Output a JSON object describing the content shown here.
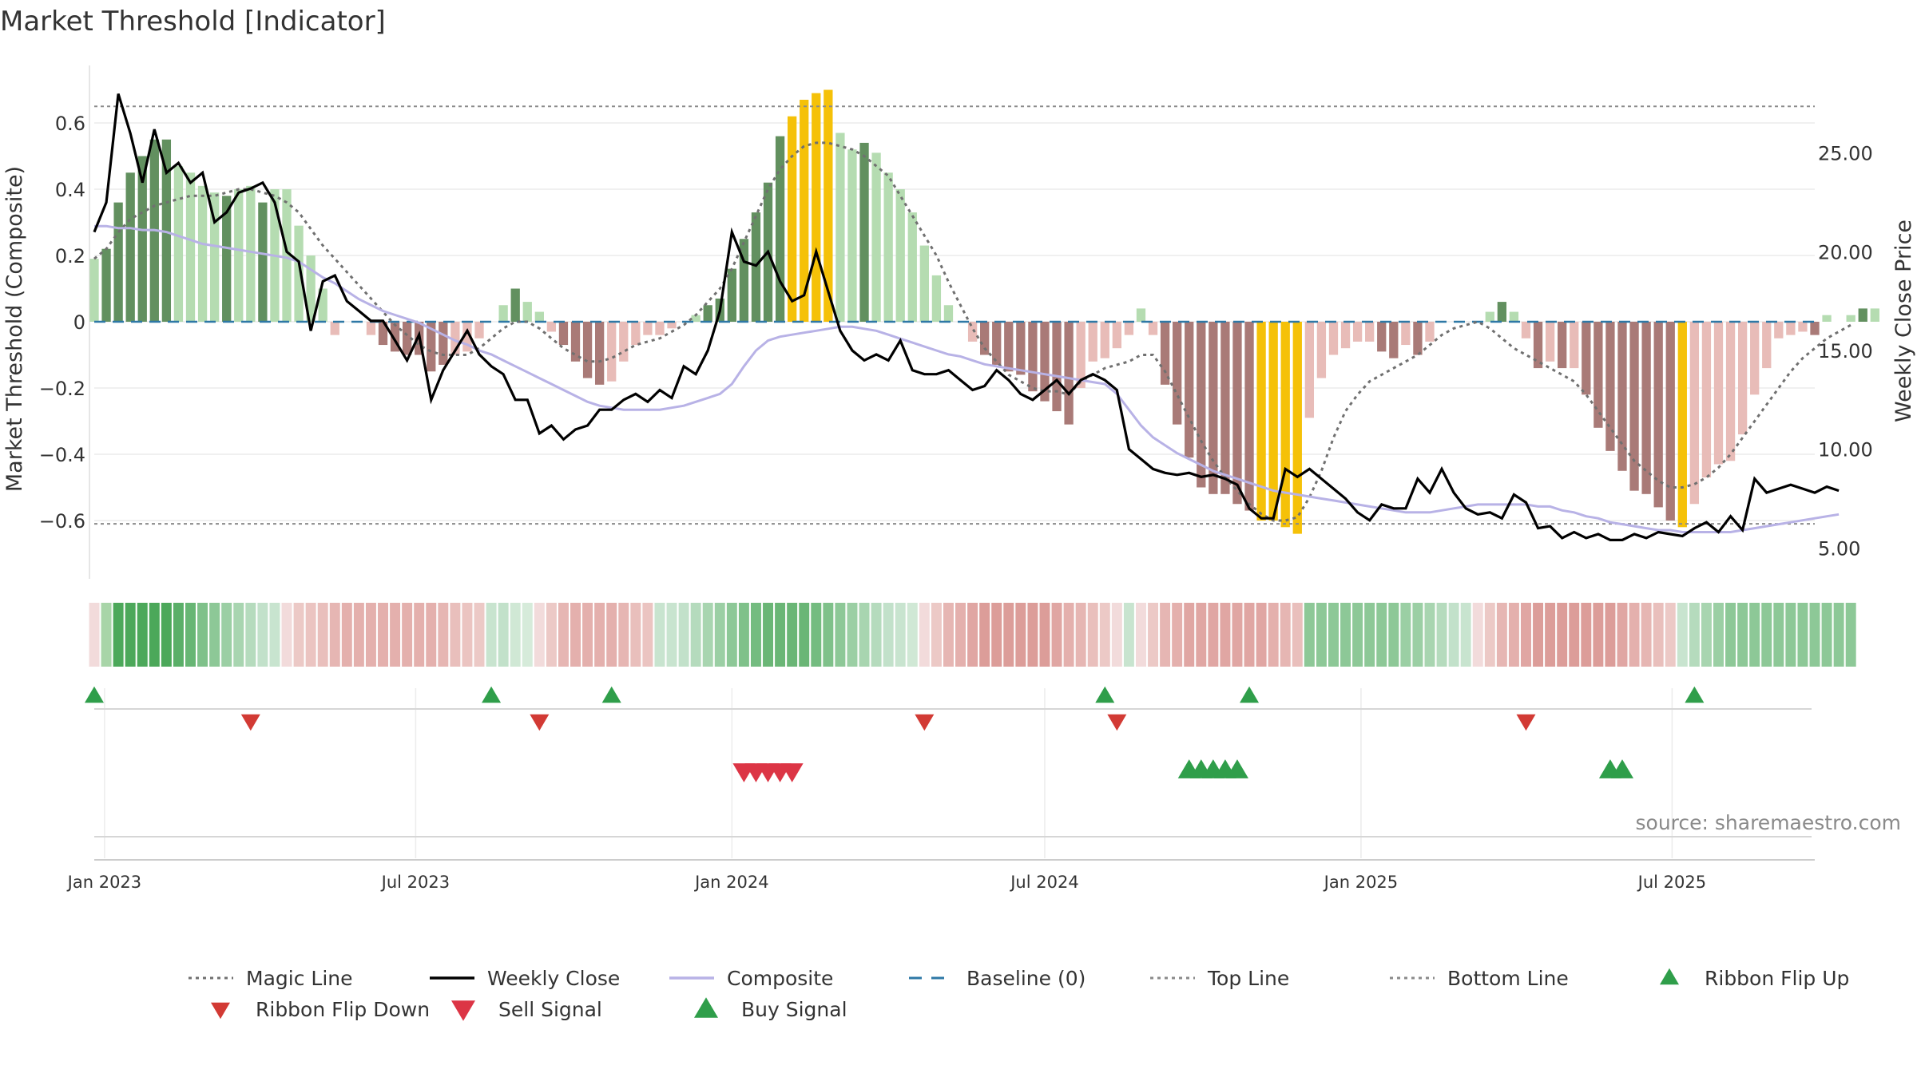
{
  "chart_data": {
    "type": "bar",
    "title": "Market Threshold [Indicator]",
    "ylabel_left": "Market Threshold (Composite)",
    "ylabel_right": "Weekly Close Price",
    "source": "source: sharemaestro.com",
    "y_left_range": [
      -0.78,
      0.78
    ],
    "y_left_ticks": [
      0.6,
      0.4,
      0.2,
      0,
      -0.2,
      -0.4,
      -0.6
    ],
    "y_left_tick_labels": [
      "0.6",
      "0.4",
      "0.2",
      "0",
      "−0.2",
      "−0.4",
      "−0.6"
    ],
    "y_right_range": [
      2.0,
      29.0
    ],
    "y_right_ticks": [
      25,
      20,
      15,
      10,
      5
    ],
    "y_right_tick_labels": [
      "25.00",
      "20.00",
      "15.00",
      "10.00",
      "5.00"
    ],
    "x_range": [
      "2022-12-26",
      "2025-09-22"
    ],
    "x_ticks": [
      "2023-01-01",
      "2023-07-01",
      "2024-01-01",
      "2024-07-01",
      "2025-01-01",
      "2025-07-01"
    ],
    "x_tick_labels": [
      "Jan 2023",
      "Jul 2023",
      "Jan 2024",
      "Jul 2024",
      "Jan 2025",
      "Jul 2025"
    ],
    "top_line": 0.65,
    "bottom_line": -0.61,
    "baseline": 0,
    "grid": true,
    "legend_position": "bottom",
    "start_date": "2022-12-26",
    "week_days": 7,
    "composite_bars": [
      0.19,
      0.22,
      0.36,
      0.45,
      0.5,
      0.55,
      0.55,
      0.47,
      0.45,
      0.41,
      0.39,
      0.38,
      0.4,
      0.41,
      0.36,
      0.4,
      0.4,
      0.29,
      0.2,
      0.1,
      -0.04,
      0.0,
      0.0,
      -0.04,
      -0.07,
      -0.09,
      -0.1,
      -0.1,
      -0.15,
      -0.13,
      -0.1,
      -0.09,
      -0.05,
      0.0,
      0.05,
      0.1,
      0.06,
      0.03,
      -0.03,
      -0.07,
      -0.12,
      -0.17,
      -0.19,
      -0.18,
      -0.12,
      -0.07,
      -0.04,
      -0.04,
      -0.02,
      0.0,
      0.02,
      0.05,
      0.07,
      0.16,
      0.25,
      0.33,
      0.42,
      0.56,
      0.62,
      0.67,
      0.69,
      0.7,
      0.57,
      0.52,
      0.54,
      0.51,
      0.45,
      0.4,
      0.33,
      0.23,
      0.14,
      0.05,
      0.0,
      -0.06,
      -0.1,
      -0.13,
      -0.15,
      -0.16,
      -0.21,
      -0.24,
      -0.27,
      -0.31,
      -0.2,
      -0.12,
      -0.11,
      -0.08,
      -0.04,
      0.04,
      -0.04,
      -0.19,
      -0.31,
      -0.41,
      -0.5,
      -0.52,
      -0.52,
      -0.55,
      -0.57,
      -0.6,
      -0.6,
      -0.62,
      -0.64,
      -0.29,
      -0.17,
      -0.1,
      -0.08,
      -0.06,
      -0.06,
      -0.09,
      -0.11,
      -0.07,
      -0.1,
      -0.06,
      0.0,
      0.0,
      0.0,
      0.0,
      0.03,
      0.06,
      0.03,
      -0.05,
      -0.14,
      -0.12,
      -0.14,
      -0.14,
      -0.22,
      -0.32,
      -0.39,
      -0.45,
      -0.51,
      -0.52,
      -0.56,
      -0.6,
      -0.62,
      -0.55,
      -0.47,
      -0.43,
      -0.42,
      -0.34,
      -0.22,
      -0.14,
      -0.05,
      -0.04,
      -0.03,
      -0.04,
      0.02,
      0.0,
      0.02,
      0.04,
      0.04
    ],
    "bar_colors": [
      "#b5dcb1",
      "#62905f",
      "#62905f",
      "#62905f",
      "#62905f",
      "#62905f",
      "#62905f",
      "#b5dcb1",
      "#b5dcb1",
      "#b5dcb1",
      "#b5dcb1",
      "#62905f",
      "#b5dcb1",
      "#b5dcb1",
      "#62905f",
      "#b5dcb1",
      "#b5dcb1",
      "#b5dcb1",
      "#b5dcb1",
      "#b5dcb1",
      "#e8bcb8",
      "#b5dcb1",
      "#b5dcb1",
      "#e8bcb8",
      "#a97a77",
      "#a97a77",
      "#a97a77",
      "#a97a77",
      "#a97a77",
      "#a97a77",
      "#e8bcb8",
      "#e8bcb8",
      "#e8bcb8",
      "#e8bcb8",
      "#b5dcb1",
      "#62905f",
      "#b5dcb1",
      "#b5dcb1",
      "#e8bcb8",
      "#a97a77",
      "#a97a77",
      "#a97a77",
      "#a97a77",
      "#e8bcb8",
      "#e8bcb8",
      "#e8bcb8",
      "#e8bcb8",
      "#e8bcb8",
      "#e8bcb8",
      "#e8bcb8",
      "#b5dcb1",
      "#62905f",
      "#62905f",
      "#62905f",
      "#62905f",
      "#62905f",
      "#62905f",
      "#62905f",
      "#f5c108",
      "#f5c108",
      "#f5c108",
      "#f5c108",
      "#b5dcb1",
      "#b5dcb1",
      "#62905f",
      "#b5dcb1",
      "#b5dcb1",
      "#b5dcb1",
      "#b5dcb1",
      "#b5dcb1",
      "#b5dcb1",
      "#b5dcb1",
      "#e8bcb8",
      "#e8bcb8",
      "#a97a77",
      "#a97a77",
      "#a97a77",
      "#a97a77",
      "#a97a77",
      "#a97a77",
      "#a97a77",
      "#a97a77",
      "#e8bcb8",
      "#e8bcb8",
      "#e8bcb8",
      "#e8bcb8",
      "#e8bcb8",
      "#b5dcb1",
      "#e8bcb8",
      "#a97a77",
      "#a97a77",
      "#a97a77",
      "#a97a77",
      "#a97a77",
      "#a97a77",
      "#a97a77",
      "#a97a77",
      "#f5c108",
      "#f5c108",
      "#f5c108",
      "#f5c108",
      "#e8bcb8",
      "#e8bcb8",
      "#e8bcb8",
      "#e8bcb8",
      "#e8bcb8",
      "#e8bcb8",
      "#a97a77",
      "#a97a77",
      "#e8bcb8",
      "#a97a77",
      "#e8bcb8",
      "#e8bcb8",
      "#e8bcb8",
      "#e8bcb8",
      "#e8bcb8",
      "#b5dcb1",
      "#62905f",
      "#b5dcb1",
      "#e8bcb8",
      "#a97a77",
      "#e8bcb8",
      "#a97a77",
      "#e8bcb8",
      "#a97a77",
      "#a97a77",
      "#a97a77",
      "#a97a77",
      "#a97a77",
      "#a97a77",
      "#a97a77",
      "#a97a77",
      "#f5c108",
      "#e8bcb8",
      "#e8bcb8",
      "#e8bcb8",
      "#e8bcb8",
      "#e8bcb8",
      "#e8bcb8",
      "#e8bcb8",
      "#e8bcb8",
      "#e8bcb8",
      "#e8bcb8",
      "#a97a77",
      "#b5dcb1",
      "#62905f",
      "#b5dcb1",
      "#62905f",
      "#b5dcb1"
    ],
    "weekly_close": [
      21.0,
      22.5,
      28.0,
      26.0,
      23.5,
      26.2,
      24.0,
      24.5,
      23.5,
      24.0,
      21.5,
      22.0,
      23.0,
      23.2,
      23.5,
      22.5,
      20.0,
      19.5,
      16.0,
      18.5,
      18.8,
      17.5,
      17.0,
      16.5,
      16.5,
      15.5,
      14.5,
      15.8,
      12.5,
      14.0,
      15.0,
      16.0,
      14.8,
      14.2,
      13.8,
      12.5,
      12.5,
      10.8,
      11.2,
      10.5,
      11.0,
      11.2,
      12.0,
      12.0,
      12.5,
      12.8,
      12.4,
      13.0,
      12.6,
      14.2,
      13.8,
      15.0,
      17.0,
      21.0,
      19.5,
      19.3,
      20.0,
      18.5,
      17.5,
      17.8,
      20.0,
      18.0,
      16.0,
      15.0,
      14.5,
      14.8,
      14.5,
      15.5,
      14.0,
      13.8,
      13.8,
      14.0,
      13.5,
      13.0,
      13.2,
      14.0,
      13.5,
      12.8,
      12.5,
      13.0,
      13.5,
      12.8,
      13.5,
      13.8,
      13.5,
      13.0,
      10.0,
      9.5,
      9.0,
      8.8,
      8.7,
      8.8,
      8.6,
      8.7,
      8.5,
      8.2,
      7.0,
      6.5,
      6.5,
      9.0,
      8.6,
      9.0,
      8.5,
      8.0,
      7.5,
      6.8,
      6.4,
      7.2,
      7.0,
      7.0,
      8.5,
      7.8,
      9.0,
      7.8,
      7.0,
      6.7,
      6.8,
      6.5,
      7.7,
      7.3,
      6.0,
      6.1,
      5.5,
      5.8,
      5.5,
      5.7,
      5.4,
      5.4,
      5.7,
      5.5,
      5.8,
      5.7,
      5.6,
      6.0,
      6.3,
      5.8,
      6.6,
      5.9,
      8.5,
      7.8,
      8.0,
      8.2,
      8.0,
      7.8,
      8.1,
      7.9
    ],
    "composite_line": [
      21.3,
      21.3,
      21.2,
      21.2,
      21.1,
      21.1,
      21.0,
      20.8,
      20.6,
      20.4,
      20.3,
      20.2,
      20.1,
      20.0,
      19.9,
      19.8,
      19.7,
      19.5,
      19.1,
      18.7,
      18.4,
      18.0,
      17.6,
      17.3,
      17.0,
      16.8,
      16.6,
      16.4,
      16.1,
      15.8,
      15.5,
      15.3,
      15.0,
      14.8,
      14.5,
      14.2,
      13.9,
      13.6,
      13.3,
      13.0,
      12.7,
      12.4,
      12.2,
      12.1,
      12.0,
      12.0,
      12.0,
      12.0,
      12.1,
      12.2,
      12.4,
      12.6,
      12.8,
      13.3,
      14.2,
      15.0,
      15.5,
      15.7,
      15.8,
      15.9,
      16.0,
      16.1,
      16.2,
      16.2,
      16.1,
      16.0,
      15.8,
      15.6,
      15.4,
      15.2,
      15.0,
      14.8,
      14.7,
      14.5,
      14.3,
      14.2,
      14.1,
      14.0,
      13.9,
      13.8,
      13.7,
      13.6,
      13.5,
      13.4,
      13.3,
      12.8,
      12.0,
      11.2,
      10.6,
      10.2,
      9.8,
      9.5,
      9.2,
      8.9,
      8.7,
      8.5,
      8.3,
      8.1,
      7.9,
      7.8,
      7.7,
      7.6,
      7.5,
      7.4,
      7.3,
      7.2,
      7.1,
      7.0,
      6.9,
      6.8,
      6.8,
      6.8,
      6.9,
      7.0,
      7.1,
      7.2,
      7.2,
      7.2,
      7.2,
      7.2,
      7.1,
      7.1,
      6.9,
      6.8,
      6.6,
      6.5,
      6.3,
      6.2,
      6.1,
      6.0,
      5.9,
      5.9,
      5.8,
      5.8,
      5.8,
      5.8,
      5.8,
      5.9,
      6.0,
      6.1,
      6.2,
      6.3,
      6.4,
      6.5,
      6.6,
      6.7
    ],
    "magic_line": [
      0.19,
      0.22,
      0.27,
      0.31,
      0.33,
      0.35,
      0.36,
      0.37,
      0.38,
      0.38,
      0.38,
      0.39,
      0.4,
      0.4,
      0.39,
      0.38,
      0.36,
      0.33,
      0.28,
      0.23,
      0.19,
      0.15,
      0.11,
      0.07,
      0.03,
      -0.01,
      -0.04,
      -0.07,
      -0.09,
      -0.1,
      -0.1,
      -0.1,
      -0.08,
      -0.05,
      -0.02,
      0.0,
      0.0,
      -0.02,
      -0.05,
      -0.08,
      -0.1,
      -0.12,
      -0.12,
      -0.11,
      -0.09,
      -0.07,
      -0.06,
      -0.05,
      -0.03,
      -0.01,
      0.02,
      0.06,
      0.1,
      0.16,
      0.24,
      0.32,
      0.4,
      0.46,
      0.5,
      0.53,
      0.54,
      0.54,
      0.53,
      0.52,
      0.5,
      0.47,
      0.44,
      0.38,
      0.32,
      0.26,
      0.2,
      0.12,
      0.05,
      -0.02,
      -0.08,
      -0.12,
      -0.16,
      -0.18,
      -0.2,
      -0.21,
      -0.21,
      -0.22,
      -0.18,
      -0.16,
      -0.14,
      -0.13,
      -0.12,
      -0.1,
      -0.1,
      -0.15,
      -0.22,
      -0.29,
      -0.36,
      -0.42,
      -0.47,
      -0.51,
      -0.55,
      -0.58,
      -0.6,
      -0.6,
      -0.59,
      -0.53,
      -0.45,
      -0.35,
      -0.27,
      -0.22,
      -0.18,
      -0.16,
      -0.14,
      -0.12,
      -0.1,
      -0.07,
      -0.04,
      -0.02,
      -0.01,
      0.0,
      -0.02,
      -0.05,
      -0.08,
      -0.1,
      -0.12,
      -0.14,
      -0.16,
      -0.18,
      -0.22,
      -0.27,
      -0.32,
      -0.37,
      -0.42,
      -0.45,
      -0.48,
      -0.5,
      -0.5,
      -0.49,
      -0.47,
      -0.44,
      -0.4,
      -0.35,
      -0.3,
      -0.25,
      -0.2,
      -0.15,
      -0.11,
      -0.08,
      -0.05,
      -0.03,
      -0.01
    ],
    "ribbon_colors": [
      "#f2dbdb",
      "#a8d5a8",
      "#4ca85a",
      "#4ca85a",
      "#4ca85a",
      "#4ca85a",
      "#4ca85a",
      "#5aaf68",
      "#67b674",
      "#7fc18a",
      "#8dc897",
      "#9bcfa4",
      "#a8d5b0",
      "#b5dbbd",
      "#c2e1ca",
      "#c8e4cf",
      "#f2dbdb",
      "#ecc9c6",
      "#ebc4c1",
      "#e9bfbc",
      "#e6b6b3",
      "#e4b0ad",
      "#e4b0ad",
      "#e4b0ad",
      "#e4b0ad",
      "#e4b0ad",
      "#e4b0ad",
      "#e4b0ad",
      "#e4b0ad",
      "#e6b6b3",
      "#e9bfbc",
      "#ebc4c1",
      "#ecc9c6",
      "#c8e4cf",
      "#c2e1ca",
      "#d0e8d5",
      "#d6ebda",
      "#f2dbdb",
      "#ecc9c6",
      "#e6b6b3",
      "#e4b0ad",
      "#e4b0ad",
      "#e4b0ad",
      "#e4b0ad",
      "#e6b6b3",
      "#e9bfbc",
      "#ebc4c1",
      "#c8e4cf",
      "#c8e4cf",
      "#c2e1ca",
      "#b5dbbd",
      "#a8d5b0",
      "#9bcfa4",
      "#8dc897",
      "#7fc18a",
      "#74bc80",
      "#6ab676",
      "#6ab676",
      "#6ab676",
      "#6ab676",
      "#74bc80",
      "#7fc18a",
      "#8dc897",
      "#9bcfa4",
      "#a8d5b0",
      "#b5dbbd",
      "#c2e1ca",
      "#c8e4cf",
      "#d0e8d5",
      "#f2dbdb",
      "#ecc9c6",
      "#e6b6b3",
      "#e4b0ad",
      "#e0a6a3",
      "#dc9d99",
      "#dc9d99",
      "#dc9d99",
      "#dc9d99",
      "#dc9d99",
      "#dc9d99",
      "#e0a6a3",
      "#e4b0ad",
      "#e6b6b3",
      "#e9bfbc",
      "#ecc9c6",
      "#f2dbdb",
      "#c8e4cf",
      "#f2dbdb",
      "#ecc9c6",
      "#e6b6b3",
      "#e4b0ad",
      "#e0a6a3",
      "#e0a6a3",
      "#e0a6a3",
      "#e0a6a3",
      "#e0a6a3",
      "#e0a6a3",
      "#e0a6a3",
      "#e4b0ad",
      "#e6b6b3",
      "#e9bfbc",
      "#8dc897",
      "#8dc897",
      "#8dc897",
      "#8dc897",
      "#8dc897",
      "#8dc897",
      "#8dc897",
      "#8dc897",
      "#9bcfa4",
      "#9bcfa4",
      "#a8d5b0",
      "#b5dbbd",
      "#c2e1ca",
      "#c8e4cf",
      "#f2dbdb",
      "#ecc9c6",
      "#e6b6b3",
      "#e4b0ad",
      "#e0a6a3",
      "#dc9d99",
      "#dc9d99",
      "#dc9d99",
      "#dc9d99",
      "#dc9d99",
      "#dc9d99",
      "#dc9d99",
      "#e0a6a3",
      "#e4b0ad",
      "#e6b6b3",
      "#e9bfbc",
      "#ecc9c6",
      "#c8e4cf",
      "#b5dbbd",
      "#a8d5b0",
      "#9bcfa4",
      "#8dc897",
      "#8dc897",
      "#8dc897",
      "#8dc897",
      "#8dc897",
      "#8dc897",
      "#8dc897",
      "#8dc897",
      "#8dc897",
      "#8dc897",
      "#8dc897"
    ],
    "ribbon_flip_up": [
      "2022-12-26",
      "2023-08-14",
      "2023-10-23",
      "2024-08-05",
      "2024-10-28",
      "2025-07-14"
    ],
    "ribbon_flip_down": [
      "2023-03-27",
      "2023-09-11",
      "2024-04-22",
      "2024-08-12",
      "2025-04-07"
    ],
    "sell_signals": [
      "2024-01-08",
      "2024-01-15",
      "2024-01-22",
      "2024-01-29",
      "2024-02-05"
    ],
    "buy_signals": [
      "2024-09-23",
      "2024-09-30",
      "2024-10-07",
      "2024-10-14",
      "2024-10-21",
      "2025-05-26",
      "2025-06-02"
    ]
  },
  "legend": [
    {
      "label": "Magic Line",
      "kind": "dotted-line",
      "color": "#707070"
    },
    {
      "label": "Weekly Close",
      "kind": "solid-line",
      "color": "#000000"
    },
    {
      "label": "Composite",
      "kind": "solid-line",
      "color": "#b8b2e6"
    },
    {
      "label": "Baseline (0)",
      "kind": "dashed-line",
      "color": "#2e78a6"
    },
    {
      "label": "Top Line",
      "kind": "dotted-line",
      "color": "#8a8a8a"
    },
    {
      "label": "Bottom Line",
      "kind": "dotted-line",
      "color": "#8a8a8a"
    },
    {
      "label": "Ribbon Flip Up",
      "kind": "triangle-up",
      "color": "#2f9e4a"
    },
    {
      "label": "Ribbon Flip Down",
      "kind": "triangle-down",
      "color": "#d23a34"
    },
    {
      "label": "Sell Signal",
      "kind": "triangle-down",
      "color": "#dc3545"
    },
    {
      "label": "Buy Signal",
      "kind": "triangle-up",
      "color": "#2f9e4a"
    }
  ],
  "colors": {
    "weekly_close": "#000000",
    "composite": "#b8b2e6",
    "magic": "#707070",
    "baseline": "#2e78a6",
    "threshold_lines": "#8a8a8a",
    "flip_up": "#2f9e4a",
    "flip_down": "#d23a34",
    "sell": "#dc3545",
    "buy": "#2f9e4a",
    "grid": "#ececec",
    "text": "#333333"
  }
}
